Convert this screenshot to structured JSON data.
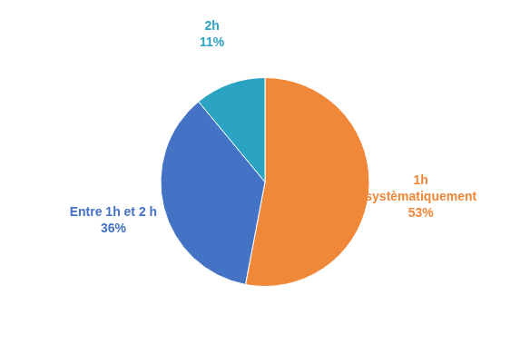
{
  "chart_data": {
    "type": "pie",
    "categories": [
      "1h\nsystèmatiquement",
      "Entre 1h et 2 h",
      "2h"
    ],
    "values": [
      53,
      36,
      11
    ],
    "value_labels": [
      "53%",
      "36%",
      "11%"
    ],
    "data_labels": true,
    "colors": [
      "#F0883A",
      "#4472C4",
      "#2BA3C2"
    ]
  }
}
